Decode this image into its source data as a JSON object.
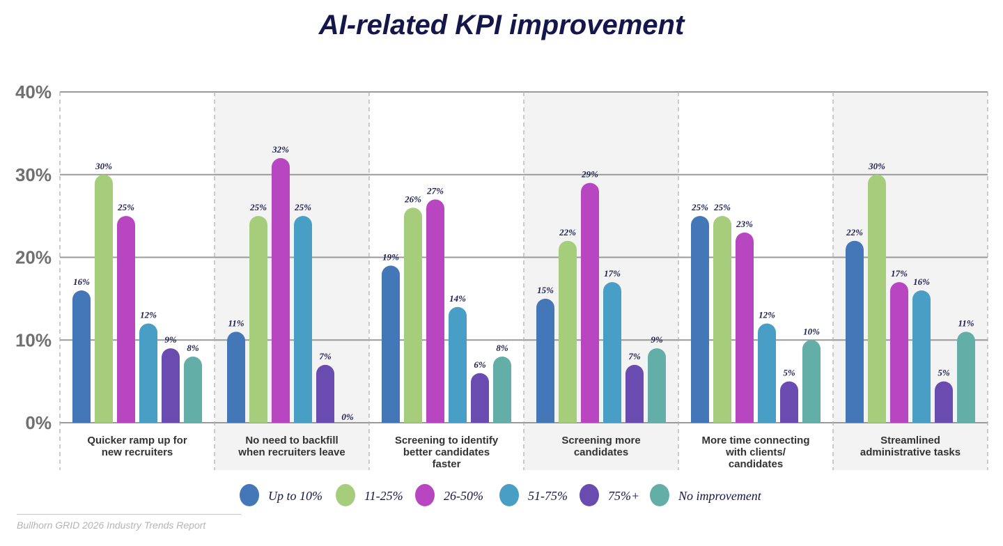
{
  "chart_data": {
    "type": "bar",
    "title": "AI-related KPI improvement",
    "categories": [
      "Quicker ramp up for|new recruiters",
      "No need to backfill|when recruiters leave",
      "Screening to identify|better candidates|faster",
      "Screening more|candidates",
      "More time connecting|with clients/|candidates",
      "Streamlined|administrative tasks"
    ],
    "series": [
      {
        "name": "Up to 10%",
        "color": "#4377b8",
        "values": [
          16,
          11,
          19,
          15,
          25,
          22
        ]
      },
      {
        "name": "11-25%",
        "color": "#a6cd7b",
        "values": [
          30,
          25,
          26,
          22,
          25,
          30
        ]
      },
      {
        "name": "26-50%",
        "color": "#b946c1",
        "values": [
          25,
          32,
          27,
          29,
          23,
          17
        ]
      },
      {
        "name": "51-75%",
        "color": "#489ec4",
        "values": [
          12,
          25,
          14,
          17,
          12,
          16
        ]
      },
      {
        "name": "75%+",
        "color": "#6a4bb0",
        "values": [
          9,
          7,
          6,
          7,
          5,
          5
        ]
      },
      {
        "name": "No improvement",
        "color": "#63aea7",
        "values": [
          8,
          0,
          8,
          9,
          10,
          11
        ]
      }
    ],
    "yticks": [
      "0%",
      "10%",
      "20%",
      "30%",
      "40%"
    ],
    "ylim": [
      0,
      40
    ],
    "grid": true,
    "legend": "bottom",
    "value_suffix": "%"
  },
  "source": "Bullhorn GRID 2026 Industry Trends Report"
}
